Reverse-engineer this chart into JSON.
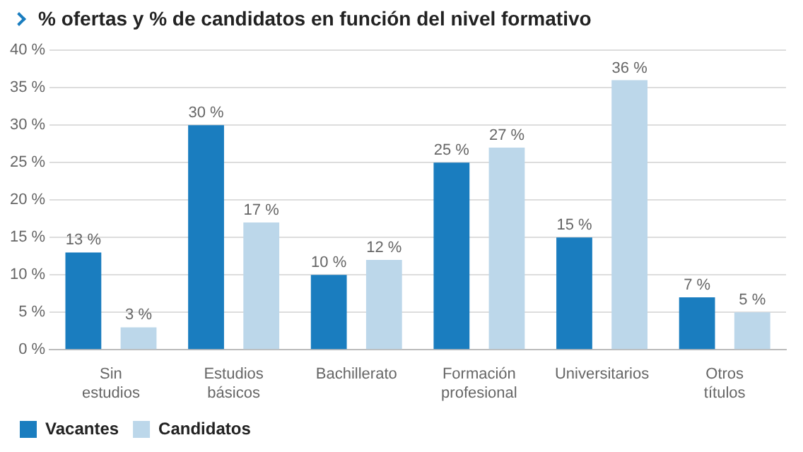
{
  "chart_data": {
    "type": "bar",
    "title": "% ofertas y % de candidatos en función del nivel formativo",
    "categories": [
      "Sin estudios",
      "Estudios básicos",
      "Bachillerato",
      "Formación profesional",
      "Universitarios",
      "Otros títulos"
    ],
    "series": [
      {
        "name": "Vacantes",
        "color": "#1a7dbf",
        "values": [
          13,
          30,
          10,
          25,
          15,
          7
        ],
        "value_labels": [
          "13 %",
          "30 %",
          "10 %",
          "25 %",
          "15 %",
          "7 %"
        ]
      },
      {
        "name": "Candidatos",
        "color": "#bcd7ea",
        "values": [
          3,
          17,
          12,
          27,
          36,
          5
        ],
        "value_labels": [
          "3 %",
          "17 %",
          "12 %",
          "27 %",
          "36 %",
          "5 %"
        ]
      }
    ],
    "ylim": [
      0,
      40
    ],
    "yticks": [
      {
        "value": 0,
        "label": "0 %"
      },
      {
        "value": 5,
        "label": "5 %"
      },
      {
        "value": 10,
        "label": "10 %"
      },
      {
        "value": 15,
        "label": "15 %"
      },
      {
        "value": 20,
        "label": "20 %"
      },
      {
        "value": 25,
        "label": "25 %"
      },
      {
        "value": 30,
        "label": "30 %"
      },
      {
        "value": 35,
        "label": "35 %"
      },
      {
        "value": 40,
        "label": "40 %"
      }
    ],
    "grid": "y",
    "legend": "bottom left"
  }
}
